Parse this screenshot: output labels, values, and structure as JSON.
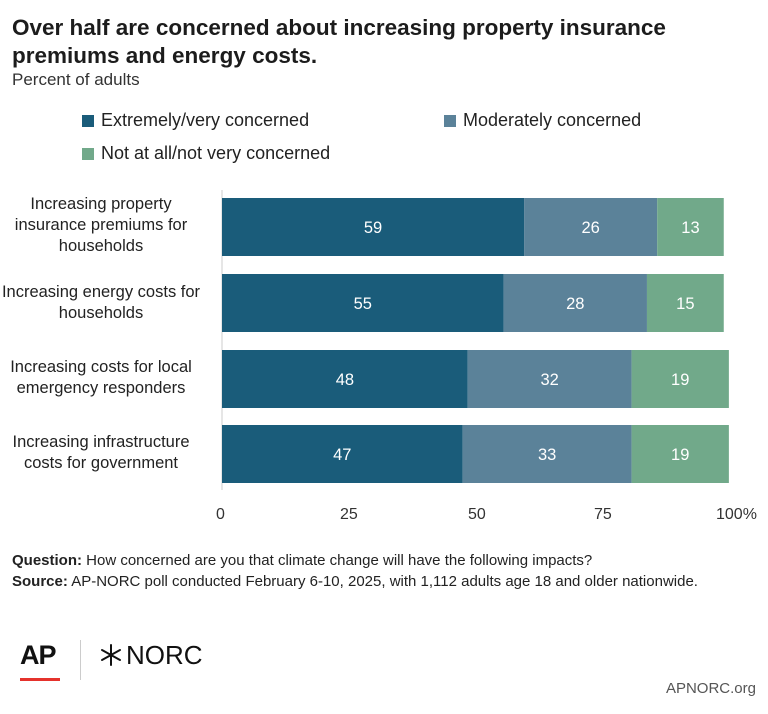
{
  "title": "Over half are concerned about increasing property insurance premiums and energy costs.",
  "subtitle": "Percent of adults",
  "colors": {
    "extremely": "#1a5c7a",
    "moderately": "#5b8299",
    "not": "#71a98a"
  },
  "footer": {
    "question_label": "Question:",
    "question_text": " How concerned are you that climate change will have the following impacts?",
    "source_label": "Source:",
    "source_text": " AP-NORC poll conducted February 6-10, 2025, with 1,112 adults age 18 and older nationwide.",
    "ap_logo": "AP",
    "norc_logo": "NORC",
    "site": "APNORC.org"
  },
  "chart_data": {
    "type": "bar",
    "orientation": "horizontal",
    "stacked": true,
    "categories": [
      "Increasing property insurance premiums for households",
      "Increasing energy costs for households",
      "Increasing costs for local emergency responders",
      "Increasing infrastructure costs for government"
    ],
    "series": [
      {
        "name": "Extremely/very concerned",
        "values": [
          59,
          55,
          48,
          47
        ]
      },
      {
        "name": "Moderately concerned",
        "values": [
          26,
          28,
          32,
          33
        ]
      },
      {
        "name": "Not at all/not very concerned",
        "values": [
          13,
          15,
          19,
          19
        ]
      }
    ],
    "xlim": [
      0,
      100
    ],
    "xticks": [
      "0",
      "25",
      "50",
      "75",
      "100%"
    ],
    "legend_position": "top",
    "grid": false
  }
}
